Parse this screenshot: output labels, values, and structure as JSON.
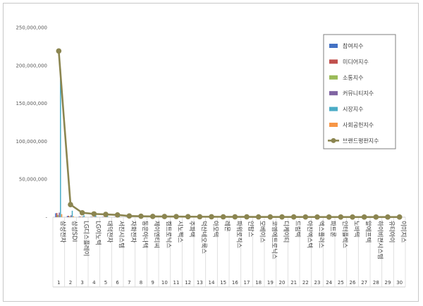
{
  "chart_data": {
    "type": "bar",
    "title": "",
    "xlabel": "",
    "ylabel": "",
    "ylim": [
      0,
      250000000
    ],
    "yticks": [
      "250,000,000",
      "200,000,000",
      "150,000,000",
      "100,000,000",
      "50,000,000",
      "-"
    ],
    "grid": false,
    "legend_position": "right",
    "categories": [
      "삼성전자",
      "삼성SDI",
      "LG디스플레이",
      "LG이노텍",
      "대덕전자",
      "서진시스템",
      "자화전자",
      "동운아나텍",
      "제이엔티씨",
      "켐트로닉스",
      "시노펙스",
      "주파택",
      "덕산네오룩스",
      "아모텍",
      "레몬",
      "파워로직스",
      "인탑스",
      "모베이스",
      "코엠에트로닉스",
      "디케이티",
      "드림텍",
      "아진엑스텍",
      "엑스플러스",
      "파트론",
      "인터플렉스",
      "노바텍",
      "알에프텍",
      "하이비젼시스템",
      "유티아이",
      "이미지스"
    ],
    "index_labels": [
      "1",
      "2",
      "3",
      "4",
      "5",
      "6",
      "7",
      "8",
      "9",
      "10",
      "11",
      "12",
      "13",
      "14",
      "15",
      "16",
      "17",
      "18",
      "19",
      "20",
      "21",
      "22",
      "23",
      "24",
      "25",
      "26",
      "27",
      "28",
      "29",
      "30"
    ],
    "series": [
      {
        "name": "참여지수",
        "color": "#4472c4",
        "values": [
          5200000,
          1600000,
          700000,
          500000,
          400000,
          300000,
          200000,
          150000,
          120000,
          100000,
          90000,
          80000,
          70000,
          60000,
          55000,
          50000,
          45000,
          40000,
          38000,
          35000,
          32000,
          30000,
          28000,
          26000,
          24000,
          22000,
          20000,
          18000,
          16000,
          15000
        ]
      },
      {
        "name": "미디어지수",
        "color": "#c0504d",
        "values": [
          5500000,
          1800000,
          800000,
          550000,
          450000,
          350000,
          220000,
          170000,
          140000,
          120000,
          100000,
          90000,
          80000,
          70000,
          60000,
          55000,
          50000,
          45000,
          42000,
          40000,
          36000,
          33000,
          30000,
          28000,
          26000,
          24000,
          22000,
          20000,
          18000,
          16000
        ]
      },
      {
        "name": "소통지수",
        "color": "#9bbb59",
        "values": [
          3000000,
          1000000,
          500000,
          350000,
          300000,
          250000,
          150000,
          120000,
          100000,
          90000,
          80000,
          70000,
          60000,
          55000,
          50000,
          45000,
          40000,
          36000,
          33000,
          30000,
          28000,
          26000,
          24000,
          22000,
          20000,
          18000,
          16000,
          15000,
          14000,
          13000
        ]
      },
      {
        "name": "커뮤니티지수",
        "color": "#8064a2",
        "values": [
          6000000,
          2500000,
          900000,
          600000,
          500000,
          400000,
          250000,
          200000,
          160000,
          140000,
          120000,
          100000,
          90000,
          80000,
          70000,
          60000,
          55000,
          50000,
          46000,
          42000,
          38000,
          35000,
          32000,
          30000,
          28000,
          26000,
          24000,
          22000,
          20000,
          18000
        ]
      },
      {
        "name": "시장지수",
        "color": "#4bacc6",
        "values": [
          195000000,
          8500000,
          2500000,
          2000000,
          1800000,
          1500000,
          600000,
          450000,
          380000,
          330000,
          290000,
          260000,
          230000,
          210000,
          190000,
          170000,
          150000,
          140000,
          130000,
          120000,
          110000,
          100000,
          95000,
          90000,
          85000,
          80000,
          75000,
          70000,
          65000,
          60000
        ]
      },
      {
        "name": "사회공헌지수",
        "color": "#f79646",
        "values": [
          4000000,
          1200000,
          400000,
          300000,
          250000,
          200000,
          120000,
          90000,
          80000,
          70000,
          60000,
          50000,
          45000,
          40000,
          35000,
          30000,
          28000,
          26000,
          24000,
          22000,
          20000,
          18000,
          16000,
          15000,
          14000,
          13000,
          12000,
          11000,
          10000,
          9000
        ]
      },
      {
        "name": "브랜드평판지수",
        "color": "#8b8550",
        "type": "line",
        "values": [
          219000000,
          16600000,
          5800000,
          4300000,
          3700000,
          3000000,
          1540000,
          1180000,
          980000,
          850000,
          740000,
          650000,
          575000,
          515000,
          460000,
          410000,
          365000,
          337000,
          313000,
          287000,
          264000,
          242000,
          225000,
          211000,
          197000,
          183000,
          169000,
          156000,
          143000,
          131000
        ]
      }
    ]
  }
}
